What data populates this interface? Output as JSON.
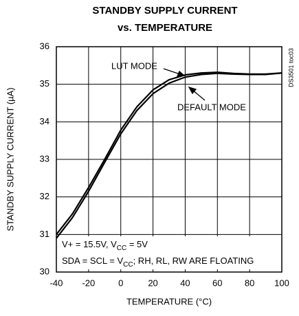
{
  "chart_data": {
    "type": "line",
    "title": "STANDBY SUPPLY CURRENT",
    "subtitle": "vs. TEMPERATURE",
    "x_label": "TEMPERATURE (°C)",
    "y_label": "STANDBY SUPPLY CURRENT (µA)",
    "side_note": "DS3501 toc03",
    "x": [
      -40,
      -30,
      -20,
      -10,
      0,
      10,
      20,
      30,
      40,
      50,
      60,
      70,
      80,
      90,
      100
    ],
    "series": [
      {
        "name": "LUT MODE",
        "color": "#000000",
        "values": [
          31.0,
          31.55,
          32.25,
          33.0,
          33.78,
          34.4,
          34.85,
          35.12,
          35.25,
          35.3,
          35.32,
          35.29,
          35.27,
          35.27,
          35.3
        ]
      },
      {
        "name": "DEFAULT MODE",
        "color": "#000000",
        "values": [
          30.9,
          31.45,
          32.15,
          32.92,
          33.68,
          34.3,
          34.75,
          35.03,
          35.19,
          35.26,
          35.29,
          35.27,
          35.26,
          35.26,
          35.3
        ]
      }
    ],
    "conditions": [
      [
        "V+ = 15.5V, V",
        "CC",
        " = 5V"
      ],
      [
        "SDA = SCL = V",
        "CC",
        "; RH, RL, RW ARE FLOATING"
      ]
    ],
    "xlim": [
      -40,
      100
    ],
    "xticks": [
      -40,
      -20,
      0,
      20,
      40,
      60,
      80,
      100
    ],
    "ylim": [
      30,
      36
    ],
    "yticks": [
      30,
      31,
      32,
      33,
      34,
      35,
      36
    ],
    "grid": true
  }
}
